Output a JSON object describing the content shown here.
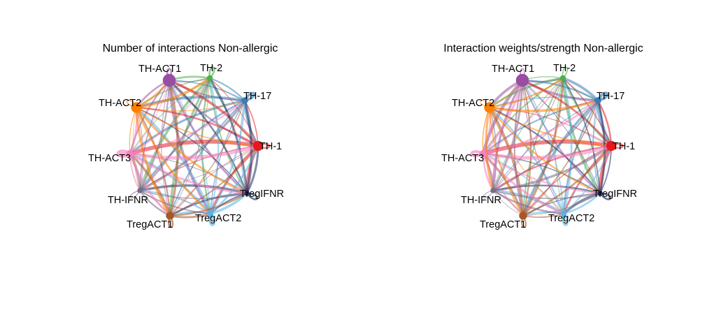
{
  "nodes": [
    {
      "name": "TH-ACT1",
      "color": "#984EA3"
    },
    {
      "name": "TH-2",
      "color": "#4DAF4A"
    },
    {
      "name": "TH-17",
      "color": "#377EB8"
    },
    {
      "name": "TH-1",
      "color": "#E41A1C"
    },
    {
      "name": "TregIFNR",
      "color": "#1B2A5E"
    },
    {
      "name": "TregACT2",
      "color": "#56B4E9"
    },
    {
      "name": "TregACT1",
      "color": "#A65628"
    },
    {
      "name": "TH-IFNR",
      "color": "#7A6A8A"
    },
    {
      "name": "TH-ACT3",
      "color": "#F781BF"
    },
    {
      "name": "TH-ACT2",
      "color": "#FF7F00"
    }
  ],
  "node_sizes": [
    18,
    8,
    9,
    14,
    7,
    8,
    11,
    7,
    10,
    15
  ],
  "panels": [
    {
      "title": "Number of interactions Non-allergic",
      "edge_style": "count",
      "self_loop_widths": [
        2.5,
        2.5,
        3.5,
        2,
        2.5,
        3.5,
        2.5,
        1.2,
        6,
        1.5
      ]
    },
    {
      "title": "Interaction weights/strength Non-allergic",
      "edge_style": "weight",
      "self_loop_widths": [
        1.5,
        1.5,
        4,
        2,
        2.5,
        3,
        2,
        1,
        4,
        0.8
      ]
    }
  ]
}
